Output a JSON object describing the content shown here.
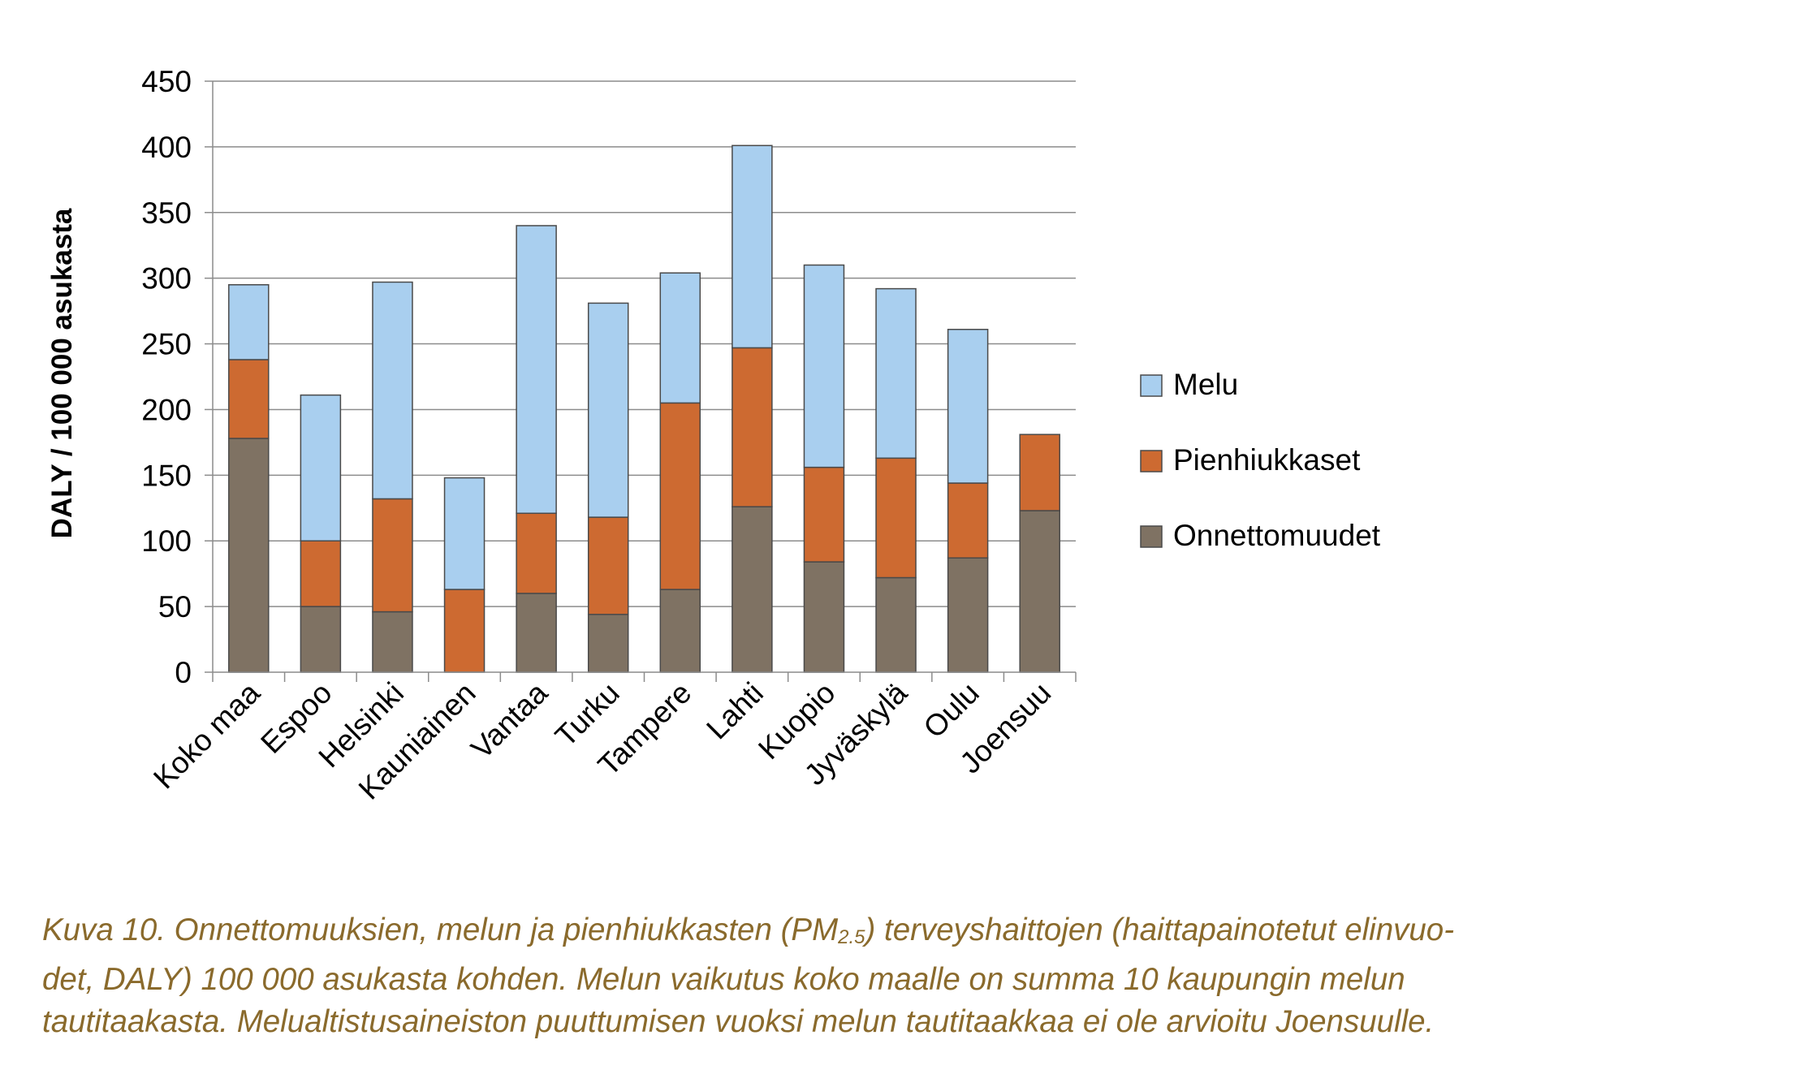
{
  "chart_data": {
    "type": "bar",
    "stacked": true,
    "ylabel": "DALY / 100 000 asukasta",
    "ylim": [
      0,
      450
    ],
    "yticks": [
      0,
      50,
      100,
      150,
      200,
      250,
      300,
      350,
      400,
      450
    ],
    "grid": true,
    "legend_position": "right",
    "categories": [
      "Koko maa",
      "Espoo",
      "Helsinki",
      "Kauniainen",
      "Vantaa",
      "Turku",
      "Tampere",
      "Lahti",
      "Kuopio",
      "Jyväskylä",
      "Oulu",
      "Joensuu"
    ],
    "series": [
      {
        "name": "Onnettomuudet",
        "color": "#7f7263",
        "values": [
          178,
          50,
          46,
          0,
          60,
          44,
          63,
          126,
          84,
          72,
          87,
          123
        ]
      },
      {
        "name": "Pienhiukkaset",
        "color": "#cd6a31",
        "values": [
          60,
          50,
          86,
          63,
          61,
          74,
          142,
          121,
          72,
          91,
          57,
          58
        ]
      },
      {
        "name": "Melu",
        "color": "#a9cfef",
        "values": [
          57,
          111,
          165,
          85,
          219,
          163,
          99,
          154,
          154,
          129,
          117,
          0
        ]
      }
    ]
  },
  "caption": {
    "line1_before": "Kuva 10. Onnettomuuksien, melun ja pienhiukkasten (PM",
    "line1_sub": "2.5",
    "line1_after": ") terveyshaittojen (haittapainotetut elinvuo-",
    "line2": "det, DALY) 100 000 asukasta kohden. Melun vaikutus koko maalle on summa 10 kaupungin melun",
    "line3": "tautitaakasta. Melualtistusaineiston puuttumisen vuoksi melun tautitaakkaa ei ole arvioitu Joensuulle."
  }
}
